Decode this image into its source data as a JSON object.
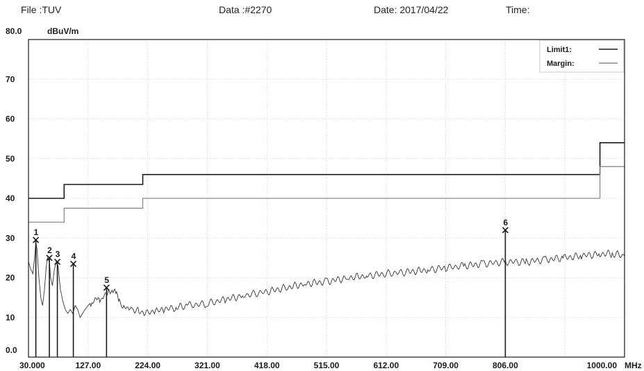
{
  "header": {
    "file": "File :TUV",
    "data": "Data :#2270",
    "date": "Date: 2017/04/22",
    "time": "Time:"
  },
  "chart_data": {
    "type": "line",
    "title": "",
    "ylabel": "dBuV/m",
    "xunit": "MHz",
    "xlim": [
      30,
      1000
    ],
    "ylim": [
      0,
      80
    ],
    "y_tick_labels": [
      "0.0",
      "10",
      "20",
      "30",
      "40",
      "50",
      "60",
      "70",
      "80.0"
    ],
    "y_tick_values": [
      0,
      10,
      20,
      30,
      40,
      50,
      60,
      70,
      80
    ],
    "x_tick_labels": [
      "30.000",
      "127.00",
      "224.00",
      "321.00",
      "418.00",
      "515.00",
      "612.00",
      "709.00",
      "806.00",
      "1000.00"
    ],
    "x_tick_values": [
      30,
      127,
      224,
      321,
      418,
      515,
      612,
      709,
      806,
      1000
    ],
    "grid": true,
    "legend": {
      "placement": "top-right",
      "entries": [
        {
          "name": "Limit1:",
          "color": "#1a1a1a"
        },
        {
          "name": "Margin:",
          "color": "#8a8a8a"
        }
      ]
    },
    "series": [
      {
        "name": "Limit1:",
        "color": "#1a1a1a",
        "x": [
          30,
          88,
          88,
          216,
          216,
          960,
          960,
          1000
        ],
        "y": [
          40,
          40,
          43.5,
          43.5,
          46,
          46,
          54,
          54
        ]
      },
      {
        "name": "Margin:",
        "color": "#8a8a8a",
        "x": [
          30,
          88,
          88,
          216,
          216,
          960,
          960,
          1000
        ],
        "y": [
          34,
          34,
          37.5,
          37.5,
          40,
          40,
          48,
          48
        ]
      },
      {
        "color": "#333333",
        "x": [
          30,
          34,
          37,
          40,
          42,
          44,
          47,
          50,
          53,
          56,
          59,
          61,
          64,
          66,
          69,
          72,
          75,
          78,
          82,
          86,
          90,
          94,
          98,
          102,
          106,
          110,
          114,
          118,
          122,
          127,
          133,
          140,
          146,
          153,
          160,
          166,
          172,
          178,
          185,
          192,
          200,
          210,
          220,
          235,
          250,
          270,
          290,
          321,
          350,
          380,
          418,
          450,
          480,
          515,
          550,
          580,
          612,
          650,
          680,
          709,
          740,
          770,
          806,
          840,
          870,
          900,
          930,
          960,
          980,
          1000
        ],
        "y": [
          24,
          22,
          21,
          25,
          29,
          27,
          20,
          15,
          13,
          17,
          23,
          25,
          24,
          20,
          18,
          22,
          24,
          23,
          17,
          14,
          12,
          11,
          12,
          11,
          13,
          12,
          10,
          11,
          12,
          13,
          14,
          15,
          14,
          15,
          16,
          17.5,
          16,
          14,
          13,
          12.5,
          12,
          11.5,
          11,
          11.5,
          12,
          12.5,
          13,
          13.5,
          14.5,
          15.5,
          16.5,
          17.5,
          18.5,
          19,
          20,
          20.5,
          21,
          21.5,
          22,
          22.5,
          23,
          23.5,
          24,
          24,
          24.5,
          25,
          25.5,
          26,
          26,
          25.5
        ]
      }
    ],
    "markers": [
      {
        "label": "1",
        "x": 42,
        "y": 29.5
      },
      {
        "label": "2",
        "x": 64,
        "y": 25
      },
      {
        "label": "3",
        "x": 77,
        "y": 24
      },
      {
        "label": "4",
        "x": 103,
        "y": 23.5
      },
      {
        "label": "5",
        "x": 157,
        "y": 17.5
      },
      {
        "label": "6",
        "x": 806,
        "y": 32
      }
    ]
  }
}
